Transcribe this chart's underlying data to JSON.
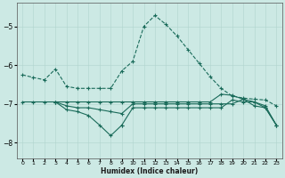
{
  "xlabel": "Humidex (Indice chaleur)",
  "bg_color": "#cce9e4",
  "line_color": "#1a6b5a",
  "grid_color": "#b0d4cd",
  "xlim": [
    -0.5,
    23.5
  ],
  "ylim": [
    -8.4,
    -4.4
  ],
  "yticks": [
    -8,
    -7,
    -6,
    -5
  ],
  "xticks": [
    0,
    1,
    2,
    3,
    4,
    5,
    6,
    7,
    8,
    9,
    10,
    11,
    12,
    13,
    14,
    15,
    16,
    17,
    18,
    19,
    20,
    21,
    22,
    23
  ],
  "line1_x": [
    0,
    1,
    2,
    3,
    4,
    5,
    6,
    7,
    8,
    9,
    10,
    11,
    12,
    13,
    14,
    15,
    16,
    17,
    18,
    19,
    20,
    21,
    22,
    23
  ],
  "line1_y": [
    -6.25,
    -6.32,
    -6.38,
    -6.1,
    -6.55,
    -6.6,
    -6.6,
    -6.6,
    -6.6,
    -6.15,
    -5.9,
    -5.0,
    -4.72,
    -4.95,
    -5.25,
    -5.6,
    -5.95,
    -6.3,
    -6.6,
    -6.8,
    -6.85,
    -6.88,
    -6.9,
    -7.05
  ],
  "line2_x": [
    0,
    1,
    2,
    3,
    4,
    5,
    6,
    7,
    8,
    9,
    10,
    11,
    12,
    13,
    14,
    15,
    16,
    17,
    18,
    19,
    20,
    21,
    22,
    23
  ],
  "line2_y": [
    -6.95,
    -6.95,
    -6.95,
    -6.95,
    -6.95,
    -6.95,
    -6.95,
    -6.95,
    -6.95,
    -6.95,
    -6.95,
    -6.95,
    -6.95,
    -6.95,
    -6.95,
    -6.95,
    -6.95,
    -6.95,
    -6.75,
    -6.78,
    -6.88,
    -6.95,
    -7.05,
    -7.55
  ],
  "line3_x": [
    3,
    4,
    5,
    6,
    7,
    8,
    9,
    10,
    11,
    12,
    13,
    14,
    15,
    16,
    17,
    18,
    19,
    20,
    21,
    22,
    23
  ],
  "line3_y": [
    -6.95,
    -7.05,
    -7.1,
    -7.1,
    -7.15,
    -7.2,
    -7.25,
    -7.0,
    -7.0,
    -7.0,
    -7.0,
    -7.0,
    -7.0,
    -7.0,
    -7.0,
    -7.0,
    -7.0,
    -6.88,
    -7.05,
    -7.1,
    -7.55
  ],
  "line4_x": [
    3,
    4,
    5,
    6,
    7,
    8,
    9
  ],
  "line4_y": [
    -6.95,
    -7.15,
    -7.2,
    -7.3,
    -7.55,
    -7.82,
    -7.55
  ],
  "line4b_x": [
    9,
    10,
    11,
    12,
    13,
    14,
    15,
    16,
    17,
    18,
    19,
    20,
    21,
    22,
    23
  ],
  "line4b_y": [
    -7.55,
    -7.1,
    -7.1,
    -7.1,
    -7.1,
    -7.1,
    -7.1,
    -7.1,
    -7.1,
    -7.1,
    -6.9,
    -6.95,
    -6.95,
    -7.1,
    -7.55
  ]
}
